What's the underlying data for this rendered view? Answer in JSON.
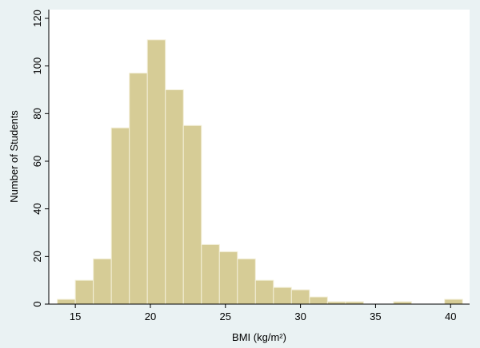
{
  "chart_data": {
    "type": "bar",
    "xlabel": "BMI (kg/m²)",
    "ylabel": "Number of Students",
    "ylim": [
      0,
      120
    ],
    "xlim": [
      13.5,
      41
    ],
    "y_ticks": [
      0,
      20,
      40,
      60,
      80,
      100,
      120
    ],
    "x_ticks": [
      15,
      20,
      25,
      30,
      35,
      40
    ],
    "bins": [
      {
        "x0": 13.8,
        "x1": 15.0,
        "value": 2
      },
      {
        "x0": 15.0,
        "x1": 16.2,
        "value": 10
      },
      {
        "x0": 16.2,
        "x1": 17.4,
        "value": 19
      },
      {
        "x0": 17.4,
        "x1": 18.6,
        "value": 74
      },
      {
        "x0": 18.6,
        "x1": 19.8,
        "value": 97
      },
      {
        "x0": 19.8,
        "x1": 21.0,
        "value": 111
      },
      {
        "x0": 21.0,
        "x1": 22.2,
        "value": 90
      },
      {
        "x0": 22.2,
        "x1": 23.4,
        "value": 75
      },
      {
        "x0": 23.4,
        "x1": 24.6,
        "value": 25
      },
      {
        "x0": 24.6,
        "x1": 25.8,
        "value": 22
      },
      {
        "x0": 25.8,
        "x1": 27.0,
        "value": 19
      },
      {
        "x0": 27.0,
        "x1": 28.2,
        "value": 10
      },
      {
        "x0": 28.2,
        "x1": 29.4,
        "value": 7
      },
      {
        "x0": 29.4,
        "x1": 30.6,
        "value": 6
      },
      {
        "x0": 30.6,
        "x1": 31.8,
        "value": 3
      },
      {
        "x0": 31.8,
        "x1": 33.0,
        "value": 1
      },
      {
        "x0": 33.0,
        "x1": 34.2,
        "value": 1
      },
      {
        "x0": 36.2,
        "x1": 37.4,
        "value": 1
      },
      {
        "x0": 39.6,
        "x1": 40.8,
        "value": 2
      }
    ],
    "bar_color": "#d6cc96",
    "bar_edge_color": "#f3efd8",
    "plot_background": "#ffffff",
    "page_background": "#eaf2f3"
  }
}
